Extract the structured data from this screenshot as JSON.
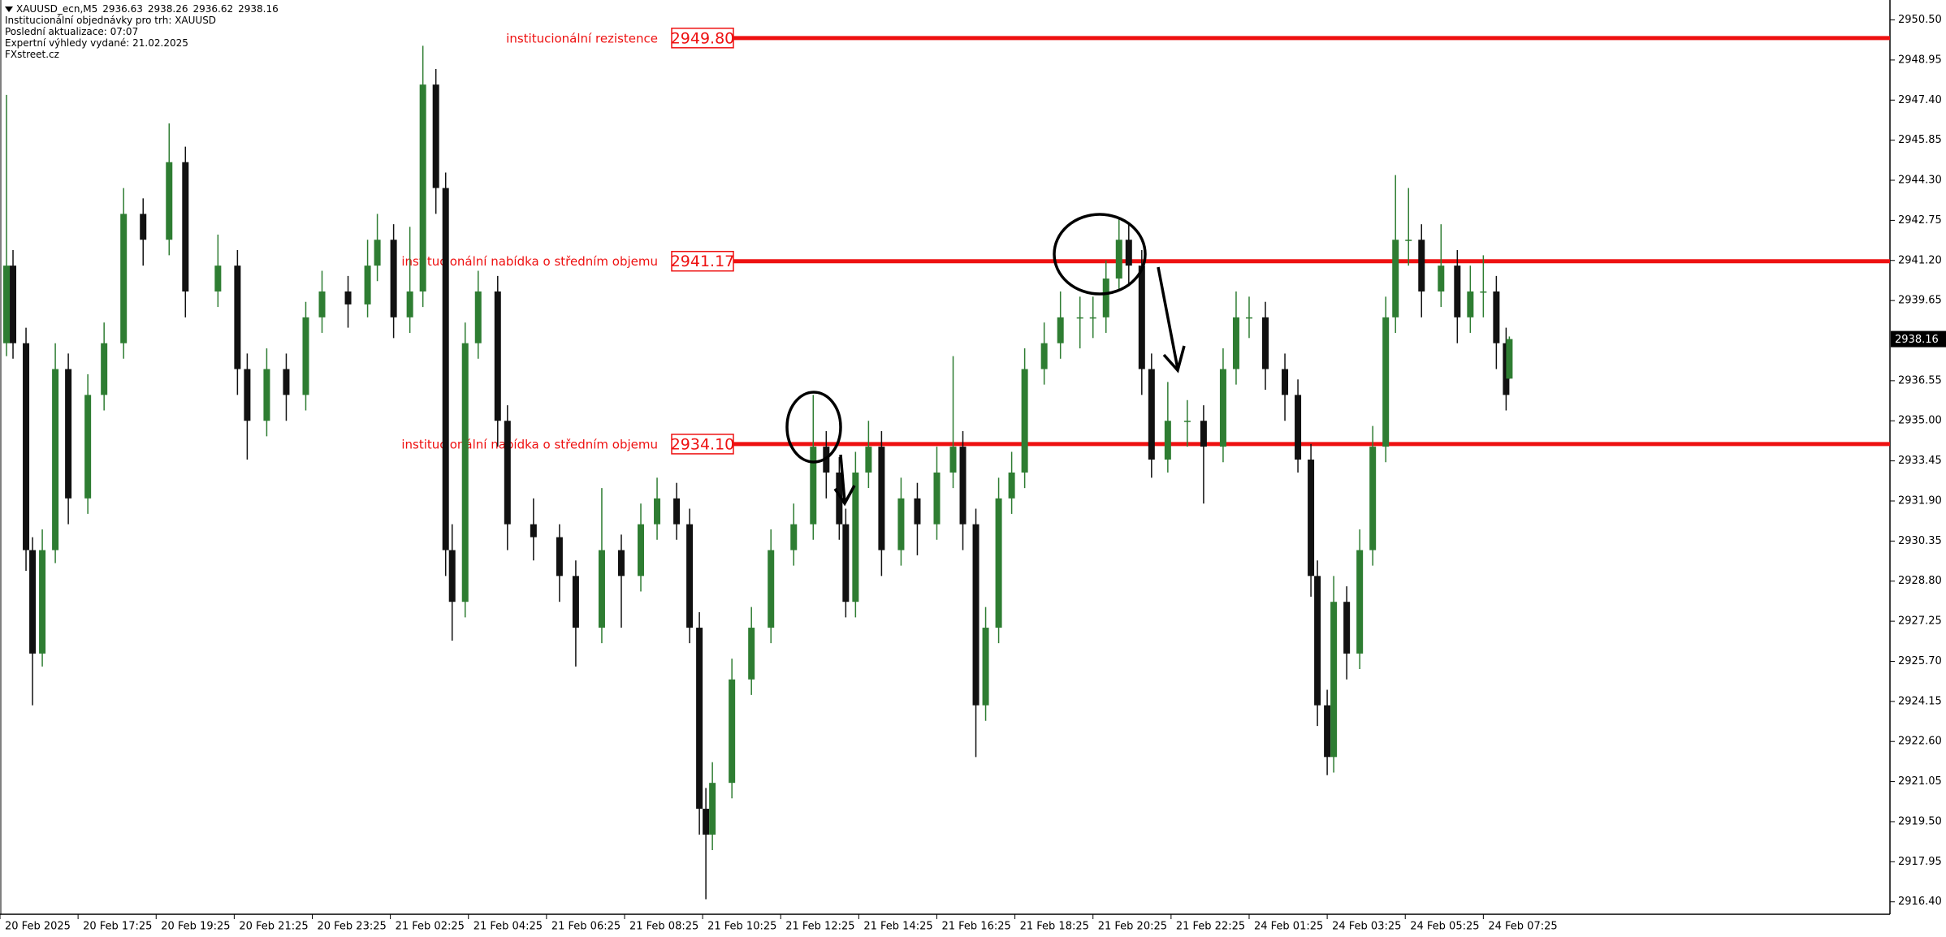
{
  "header": {
    "symbol": "XAUUSD_ecn,M5",
    "lines": [
      "Institucionální objednávky pro trh: XAUUSD",
      "Poslední aktualizace: 07:07",
      "Expertní výhledy vydané: 21.02.2025",
      "FXstreet.cz"
    ]
  },
  "chart_data": {
    "type": "candlestick",
    "up_color": "#2e7d32",
    "down_color": "#111111",
    "level_color": "#ee1111",
    "xlim": [
      0,
      581
    ],
    "ylim": [
      2915.92,
      2951.27
    ],
    "xticks": [
      {
        "value": 0,
        "label": "20 Feb 2025"
      },
      {
        "value": 24,
        "label": "20 Feb 17:25"
      },
      {
        "value": 48,
        "label": "20 Feb 19:25"
      },
      {
        "value": 72,
        "label": "20 Feb 21:25"
      },
      {
        "value": 96,
        "label": "20 Feb 23:25"
      },
      {
        "value": 120,
        "label": "21 Feb 02:25"
      },
      {
        "value": 144,
        "label": "21 Feb 04:25"
      },
      {
        "value": 168,
        "label": "21 Feb 06:25"
      },
      {
        "value": 192,
        "label": "21 Feb 08:25"
      },
      {
        "value": 216,
        "label": "21 Feb 10:25"
      },
      {
        "value": 240,
        "label": "21 Feb 12:25"
      },
      {
        "value": 264,
        "label": "21 Feb 14:25"
      },
      {
        "value": 288,
        "label": "21 Feb 16:25"
      },
      {
        "value": 312,
        "label": "21 Feb 18:25"
      },
      {
        "value": 336,
        "label": "21 Feb 20:25"
      },
      {
        "value": 360,
        "label": "21 Feb 22:25"
      },
      {
        "value": 384,
        "label": "24 Feb 01:25"
      },
      {
        "value": 408,
        "label": "24 Feb 03:25"
      },
      {
        "value": 432,
        "label": "24 Feb 05:25"
      },
      {
        "value": 456,
        "label": "24 Feb 07:25"
      }
    ],
    "yticks": [
      {
        "value": 2950.5,
        "label": "2950.50"
      },
      {
        "value": 2948.95,
        "label": "2948.95"
      },
      {
        "value": 2947.4,
        "label": "2947.40"
      },
      {
        "value": 2945.85,
        "label": "2945.85"
      },
      {
        "value": 2944.3,
        "label": "2944.30"
      },
      {
        "value": 2942.75,
        "label": "2942.75"
      },
      {
        "value": 2941.2,
        "label": "2941.20"
      },
      {
        "value": 2939.65,
        "label": "2939.65"
      },
      {
        "value": 2936.55,
        "label": "2936.55"
      },
      {
        "value": 2935,
        "label": "2935.00"
      },
      {
        "value": 2933.45,
        "label": "2933.45"
      },
      {
        "value": 2931.9,
        "label": "2931.90"
      },
      {
        "value": 2930.35,
        "label": "2930.35"
      },
      {
        "value": 2928.8,
        "label": "2928.80"
      },
      {
        "value": 2927.25,
        "label": "2927.25"
      },
      {
        "value": 2925.7,
        "label": "2925.70"
      },
      {
        "value": 2924.15,
        "label": "2924.15"
      },
      {
        "value": 2922.6,
        "label": "2922.60"
      },
      {
        "value": 2921.05,
        "label": "2921.05"
      },
      {
        "value": 2919.5,
        "label": "2919.50"
      },
      {
        "value": 2917.95,
        "label": "2917.95"
      },
      {
        "value": 2916.4,
        "label": "2916.40"
      }
    ],
    "levels": [
      {
        "value": 2949.8,
        "value_label": "2949.80",
        "text": "institucionální rezistence"
      },
      {
        "value": 2941.17,
        "value_label": "2941.17",
        "text": "institucionální nabídka o středním objemu"
      },
      {
        "value": 2934.1,
        "value_label": "2934.10",
        "text": "institucionální nabídka o středním objemu"
      }
    ],
    "candles": {
      "x": [
        2,
        4,
        8,
        10,
        13,
        17,
        21,
        27,
        32,
        38,
        44,
        52,
        57,
        67,
        73,
        76,
        82,
        88,
        94,
        99,
        107,
        113,
        116,
        121,
        126,
        130,
        134,
        137,
        139,
        143,
        147,
        153,
        156,
        164,
        172,
        177,
        185,
        191,
        197,
        202,
        208,
        212,
        215,
        217,
        219,
        225,
        231,
        237,
        244,
        250,
        254,
        258,
        260,
        263,
        267,
        271,
        277,
        282,
        288,
        293,
        296,
        300,
        303,
        307,
        311,
        315,
        321,
        326,
        332,
        336,
        340,
        344,
        347,
        351,
        354,
        359,
        365,
        370,
        376,
        380,
        384,
        389,
        395,
        399,
        403,
        405,
        408,
        410,
        414,
        418,
        422,
        426,
        429,
        433,
        437,
        443,
        448,
        452,
        456,
        460,
        463,
        464
      ],
      "open": [
        2938,
        2941,
        2938,
        2930,
        2926,
        2930,
        2937,
        2932,
        2936,
        2938,
        2943,
        2942,
        2945,
        2940,
        2941,
        2937,
        2935,
        2937,
        2936,
        2939,
        2940,
        2939.5,
        2941,
        2942,
        2939,
        2940,
        2948,
        2944,
        2930,
        2928,
        2938,
        2940,
        2935,
        2931,
        2930.5,
        2929,
        2927,
        2930,
        2929,
        2931,
        2932,
        2931,
        2927,
        2920,
        2919,
        2921,
        2925,
        2927,
        2930,
        2931,
        2934,
        2933,
        2931,
        2928,
        2933,
        2934,
        2930,
        2932,
        2931,
        2933,
        2934,
        2931,
        2924,
        2927,
        2932,
        2933,
        2937,
        2938,
        2939,
        2939,
        2939,
        2940.5,
        2942,
        2941,
        2937,
        2933.5,
        2935,
        2935,
        2934,
        2937,
        2939,
        2939,
        2937,
        2936,
        2933.5,
        2929,
        2924,
        2922,
        2928,
        2926,
        2930,
        2934,
        2939,
        2942,
        2942,
        2940,
        2941,
        2939,
        2940,
        2940,
        2938,
        2936.63
      ],
      "high": [
        2947.6,
        2941.6,
        2938.6,
        2930.5,
        2930.8,
        2938,
        2937.6,
        2936.8,
        2938.8,
        2944,
        2943.6,
        2946.5,
        2945.6,
        2942.2,
        2941.6,
        2937.6,
        2937.8,
        2937.6,
        2939.6,
        2940.8,
        2940.6,
        2942,
        2943,
        2942.6,
        2942.5,
        2949.5,
        2948.6,
        2944.6,
        2931,
        2938.8,
        2940.8,
        2940.6,
        2935.6,
        2932,
        2931,
        2929.6,
        2932.4,
        2930.6,
        2931.8,
        2932.8,
        2932.6,
        2931.6,
        2927.6,
        2920.8,
        2921.8,
        2925.8,
        2927.8,
        2930.8,
        2931.8,
        2936,
        2934.6,
        2933.6,
        2931.6,
        2933.8,
        2935,
        2934.6,
        2932.8,
        2932.6,
        2934,
        2937.5,
        2934.6,
        2931.6,
        2927.8,
        2932.8,
        2933.8,
        2937.8,
        2938.8,
        2940,
        2939.8,
        2939.8,
        2941.2,
        2942.8,
        2942.6,
        2941.6,
        2937.6,
        2936.5,
        2935.8,
        2935.6,
        2937.8,
        2940,
        2939.8,
        2939.6,
        2937.6,
        2936.6,
        2934.1,
        2929.6,
        2924.6,
        2929,
        2928.6,
        2930.8,
        2934.8,
        2939.8,
        2944.5,
        2944,
        2942.6,
        2942.6,
        2941.6,
        2941,
        2941.4,
        2940.6,
        2938.6,
        2938.26
      ],
      "low": [
        2937.5,
        2937.4,
        2929.2,
        2924,
        2925.5,
        2929.5,
        2931,
        2931.4,
        2935.4,
        2937.4,
        2941,
        2941.4,
        2939,
        2939.4,
        2936,
        2933.5,
        2934.4,
        2935,
        2935.4,
        2938.4,
        2938.6,
        2939,
        2940.4,
        2938.2,
        2938.4,
        2939.4,
        2943,
        2929,
        2926.5,
        2927.4,
        2937.4,
        2934,
        2930,
        2929.6,
        2928,
        2925.5,
        2926.4,
        2927,
        2928.4,
        2930.4,
        2930.4,
        2926.4,
        2919,
        2916.5,
        2918.4,
        2920.4,
        2924.4,
        2926.4,
        2929.4,
        2930.4,
        2932,
        2930.4,
        2927.4,
        2927.4,
        2932.4,
        2929,
        2929.4,
        2929.8,
        2930.4,
        2932.4,
        2930,
        2922,
        2923.4,
        2926.4,
        2931.4,
        2932.4,
        2936.4,
        2937.4,
        2937.8,
        2938.2,
        2938.4,
        2940,
        2940.2,
        2936,
        2932.8,
        2933,
        2934,
        2931.8,
        2933.4,
        2936.4,
        2938.2,
        2936.2,
        2935,
        2933,
        2928.2,
        2923.2,
        2921.3,
        2921.4,
        2925,
        2925.4,
        2929.4,
        2933.4,
        2938.4,
        2941,
        2939,
        2939.4,
        2938,
        2938.4,
        2939,
        2937,
        2935.4,
        2936.62
      ],
      "close": [
        2941,
        2938,
        2930,
        2926,
        2930,
        2937,
        2932,
        2936,
        2938,
        2943,
        2942,
        2945,
        2940,
        2941,
        2937,
        2935,
        2937,
        2936,
        2939,
        2940,
        2939.5,
        2941,
        2942,
        2939,
        2940,
        2948,
        2944,
        2930,
        2928,
        2938,
        2940,
        2935,
        2931,
        2930.5,
        2929,
        2927,
        2930,
        2929,
        2931,
        2932,
        2931,
        2927,
        2920,
        2919,
        2921,
        2925,
        2927,
        2930,
        2931,
        2934,
        2933,
        2931,
        2928,
        2933,
        2934,
        2930,
        2932,
        2931,
        2933,
        2934,
        2931,
        2924,
        2927,
        2932,
        2933,
        2937,
        2938,
        2939,
        2939,
        2939,
        2940.5,
        2942,
        2941,
        2937,
        2933.5,
        2935,
        2935,
        2934,
        2937,
        2939,
        2939,
        2937,
        2936,
        2933.5,
        2929,
        2924,
        2922,
        2928,
        2926,
        2930,
        2934,
        2939,
        2942,
        2942,
        2940,
        2941,
        2939,
        2940,
        2940,
        2938,
        2936,
        2938.16
      ]
    }
  }
}
